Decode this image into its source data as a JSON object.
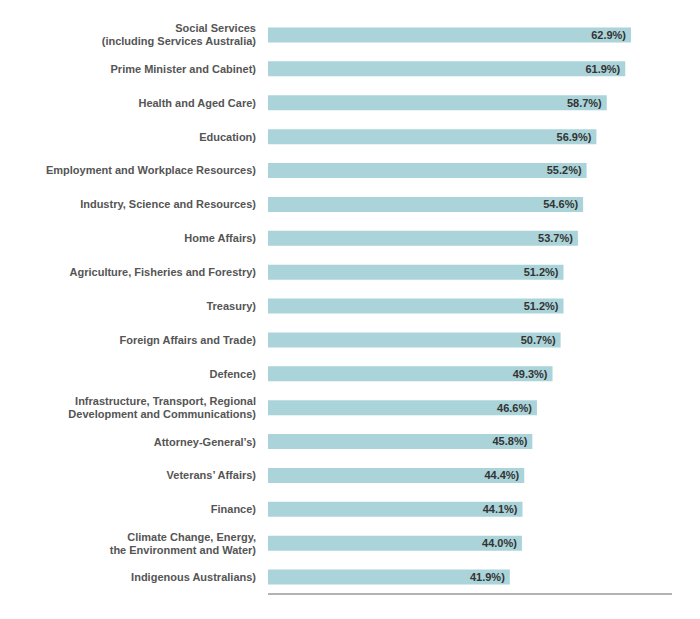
{
  "chart_data": {
    "type": "bar",
    "orientation": "horizontal",
    "categories": [
      "Indigenous Australians)",
      "Climate Change, Energy,\nthe Environment and Water)",
      "Finance)",
      "Veterans’ Affairs)",
      "Attorney-General’s)",
      "Infrastructure, Transport, Regional\nDevelopment and Communications)",
      "Defence)",
      "Foreign Affairs and Trade)",
      "Treasury)",
      "Agriculture, Fisheries and Forestry)",
      "Home Affairs)",
      "Industry, Science and Resources)",
      "Employment and Workplace Resources)",
      "Education)",
      "Health and Aged Care)",
      "Prime Minister and Cabinet)",
      "Social Services\n(including Services Australia)"
    ],
    "values": [
      41.9,
      44.0,
      44.1,
      44.4,
      45.8,
      46.6,
      49.3,
      50.7,
      51.2,
      51.2,
      53.7,
      54.6,
      55.2,
      56.9,
      58.7,
      61.9,
      62.9
    ],
    "value_labels": [
      "41.9%)",
      "44.0%)",
      "44.1%)",
      "44.4%)",
      "45.8%)",
      "46.6%)",
      "49.3%)",
      "50.7%)",
      "51.2%)",
      "51.2%)",
      "53.7%)",
      "54.6%)",
      "55.2%)",
      "56.9%)",
      "58.7%)",
      "61.9%)",
      "62.9%)"
    ],
    "color": "#aad4d9",
    "xlim": [
      0,
      70
    ],
    "grid": false,
    "data_labels": true,
    "tick_labels": "y"
  }
}
